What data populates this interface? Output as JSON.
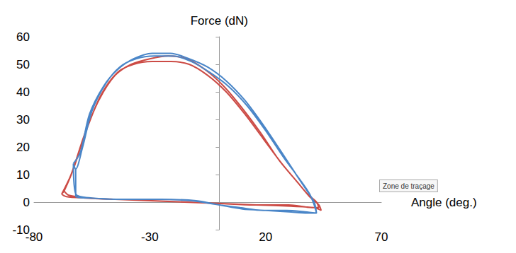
{
  "chart_data": {
    "type": "line",
    "x_label": "Angle (deg.)",
    "y_label": "Force (dN)",
    "xlim": [
      -80,
      70
    ],
    "xticks": [
      -80,
      -30,
      20,
      70
    ],
    "ylim": [
      -10,
      60
    ],
    "yticks": [
      -10,
      0,
      10,
      20,
      30,
      40,
      50,
      60
    ],
    "grid": false,
    "annotations": [
      {
        "text": "Zone de traçage"
      }
    ],
    "series": [
      {
        "color": "#cc4b45",
        "x": [
          -68,
          -64,
          -58,
          -52,
          -45,
          -38,
          -30,
          -22,
          -14,
          -6,
          2,
          10,
          18,
          26,
          33,
          38,
          42,
          43,
          40,
          30,
          15,
          0,
          -15,
          -30,
          -45,
          -58,
          -66,
          -68,
          -67,
          -63,
          -57,
          -51,
          -44,
          -37,
          -29,
          -21,
          -13,
          -5,
          3,
          11,
          19,
          27,
          34,
          39,
          43,
          44,
          41,
          31,
          16,
          1,
          -14,
          -29,
          -44,
          -57,
          -65,
          -67
        ],
        "values": [
          3,
          10,
          25,
          37,
          46,
          50,
          52,
          53,
          52,
          48,
          42,
          34,
          25,
          15,
          8,
          3,
          0,
          -2,
          -2,
          -1,
          -1,
          -0.5,
          0,
          0.5,
          1,
          1.5,
          2,
          3,
          4,
          12,
          27,
          39,
          47,
          50,
          51,
          51,
          50,
          46,
          40,
          32,
          23,
          14,
          7,
          2,
          -1,
          -3,
          -2,
          -1.5,
          -1,
          -0.5,
          0,
          0.5,
          1,
          1.5,
          2.5,
          4
        ]
      },
      {
        "color": "#4a86c8",
        "x": [
          -63,
          -60,
          -56,
          -50,
          -44,
          -37,
          -29,
          -21,
          -13,
          -5,
          3,
          11,
          19,
          27,
          34,
          38,
          41,
          42,
          38,
          30,
          20,
          10,
          0,
          -10,
          -25,
          -40,
          -55,
          -62,
          -63,
          -62,
          -59,
          -55,
          -49,
          -43,
          -36,
          -28,
          -20,
          -12,
          -4,
          4,
          12,
          20,
          28,
          35,
          39,
          41,
          42,
          37,
          29,
          19,
          9,
          0,
          -12,
          -27,
          -42,
          -56,
          -62,
          -62
        ],
        "values": [
          14,
          18,
          32,
          42,
          48,
          52,
          54,
          54,
          52,
          49,
          44,
          37,
          28,
          18,
          9,
          4,
          0,
          -4,
          -4,
          -3.5,
          -3,
          -2.5,
          -1,
          0.5,
          1,
          1,
          1.5,
          3,
          14,
          12,
          20,
          33,
          43,
          49,
          52,
          53,
          53,
          51,
          47,
          42,
          35,
          26,
          16,
          8,
          3,
          -1,
          -4,
          -3.5,
          -3,
          -3,
          -2,
          -1,
          0.5,
          1,
          1,
          1.5,
          2,
          12
        ]
      }
    ]
  }
}
